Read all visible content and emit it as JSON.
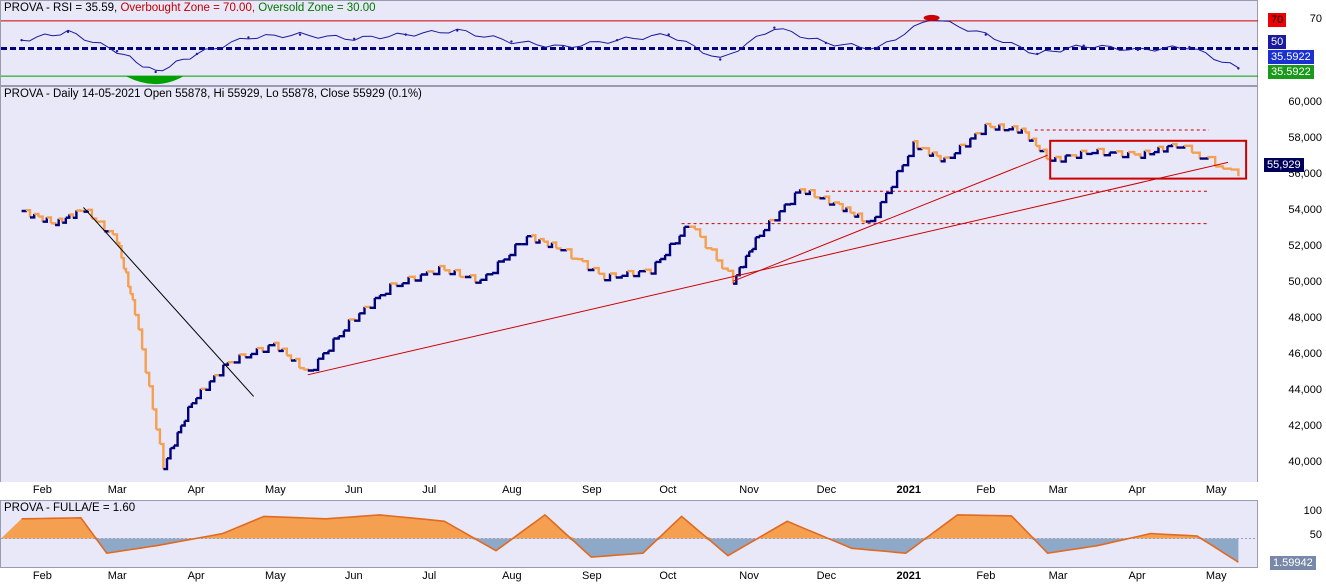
{
  "rsi_panel": {
    "title_prefix": "PROVA - RSI = 35.59,",
    "overbought_text": "Overbought Zone = 70.00,",
    "oversold_text": "Oversold Zone = 30.00",
    "axis_ticks": [
      "70",
      "50"
    ],
    "badge_70": "70",
    "badge_50": "50",
    "badge_value_1": "35.5922",
    "badge_value_2": "35.5922",
    "colors": {
      "overbought": "#cc0000",
      "oversold": "#00a000",
      "line": "#1a1a9c",
      "mid": "#000080"
    }
  },
  "price_panel": {
    "title": "PROVA - Daily 14-05-2021 Open 55878, Hi 55929, Lo 55878, Close 55929 (0.1%)",
    "axis_ticks": [
      "60,000",
      "58,000",
      "56,000",
      "54,000",
      "52,000",
      "50,000",
      "48,000",
      "46,000",
      "44,000",
      "42,000",
      "40,000"
    ],
    "last_price_badge": "55,929",
    "colors": {
      "up": "#00007a",
      "down": "#f5a050",
      "trend": "#cc0000"
    }
  },
  "osc_panel": {
    "title": "PROVA - FULLA/E = 1.60",
    "axis_ticks": [
      "100",
      "50"
    ],
    "value_badge": "1.59942",
    "colors": {
      "line": "#e06a20",
      "above": "#f5a050",
      "below": "#8ea8c8"
    }
  },
  "x_axis": {
    "months": [
      "Feb",
      "Mar",
      "Apr",
      "May",
      "Jun",
      "Jul",
      "Aug",
      "Sep",
      "Oct",
      "Nov",
      "Dec",
      "2021",
      "Feb",
      "Mar",
      "Apr",
      "May"
    ]
  },
  "chart_data": [
    {
      "type": "line",
      "title": "PROVA - RSI = 35.59",
      "ylim": [
        25,
        80
      ],
      "reference_lines": [
        70,
        50,
        30
      ],
      "x": [
        "2020-01-28",
        "2020-02-15",
        "2020-03-05",
        "2020-03-20",
        "2020-04-05",
        "2020-04-25",
        "2020-05-15",
        "2020-06-05",
        "2020-06-25",
        "2020-07-15",
        "2020-08-05",
        "2020-08-25",
        "2020-09-15",
        "2020-10-05",
        "2020-10-25",
        "2020-11-15",
        "2020-12-05",
        "2020-12-25",
        "2021-01-15",
        "2021-02-05",
        "2021-02-25",
        "2021-03-15",
        "2021-04-05",
        "2021-04-25",
        "2021-05-14"
      ],
      "values": [
        56,
        62,
        48,
        33,
        46,
        58,
        60,
        57,
        60,
        63,
        55,
        51,
        56,
        60,
        42,
        65,
        54,
        50,
        72,
        60,
        46,
        52,
        49,
        51,
        35.59
      ]
    },
    {
      "type": "line",
      "title": "PROVA - Daily 14-05-2021 Open 55878, Hi 55929, Lo 55878, Close 55929 (0.1%)",
      "ylim": [
        39000,
        61000
      ],
      "x": [
        "2020-01-28",
        "2020-02-10",
        "2020-02-21",
        "2020-03-05",
        "2020-03-12",
        "2020-03-23",
        "2020-04-03",
        "2020-04-17",
        "2020-05-05",
        "2020-05-18",
        "2020-06-03",
        "2020-06-19",
        "2020-07-08",
        "2020-07-24",
        "2020-08-11",
        "2020-08-24",
        "2020-09-10",
        "2020-09-28",
        "2020-10-13",
        "2020-10-30",
        "2020-11-09",
        "2020-11-25",
        "2020-12-10",
        "2020-12-22",
        "2021-01-08",
        "2021-01-20",
        "2021-02-05",
        "2021-02-19",
        "2021-03-02",
        "2021-03-18",
        "2021-04-06",
        "2021-04-20",
        "2021-05-14"
      ],
      "values": [
        54000,
        53300,
        54100,
        52400,
        48400,
        39800,
        43400,
        45600,
        46600,
        45000,
        47800,
        49800,
        50800,
        50100,
        52600,
        51900,
        50300,
        50700,
        53300,
        50100,
        52700,
        55200,
        54300,
        53300,
        57700,
        56800,
        58700,
        58500,
        56800,
        57300,
        57100,
        57700,
        55929
      ],
      "annotations": {
        "trendlines": [
          {
            "from": [
              "2020-02-21",
              54200
            ],
            "to": [
              "2020-04-27",
              43700
            ]
          },
          {
            "from": [
              "2020-05-18",
              44900
            ],
            "to": [
              "2021-05-10",
              56700
            ]
          },
          {
            "from": [
              "2020-10-30",
              50100
            ],
            "to": [
              "2021-03-01",
              57100
            ]
          }
        ],
        "horizontal_levels": [
          58500,
          55100,
          53300
        ],
        "range_box": {
          "x": [
            "2021-03-02",
            "2021-05-17"
          ],
          "y": [
            55800,
            57900
          ]
        }
      }
    },
    {
      "type": "area",
      "title": "PROVA - FULLA/E = 1.60",
      "ylim": [
        0,
        110
      ],
      "reference_line": 50,
      "x": [
        "2020-01-28",
        "2020-02-20",
        "2020-03-01",
        "2020-03-20",
        "2020-04-15",
        "2020-05-01",
        "2020-05-25",
        "2020-06-15",
        "2020-07-10",
        "2020-07-30",
        "2020-08-18",
        "2020-09-05",
        "2020-09-25",
        "2020-10-10",
        "2020-10-28",
        "2020-11-20",
        "2020-12-15",
        "2021-01-05",
        "2021-01-25",
        "2021-02-15",
        "2021-03-01",
        "2021-03-20",
        "2021-04-10",
        "2021-04-28",
        "2021-05-14"
      ],
      "values": [
        90,
        92,
        20,
        35,
        60,
        95,
        90,
        98,
        85,
        25,
        98,
        12,
        20,
        95,
        15,
        85,
        30,
        20,
        98,
        96,
        20,
        35,
        60,
        55,
        1.6
      ]
    }
  ]
}
